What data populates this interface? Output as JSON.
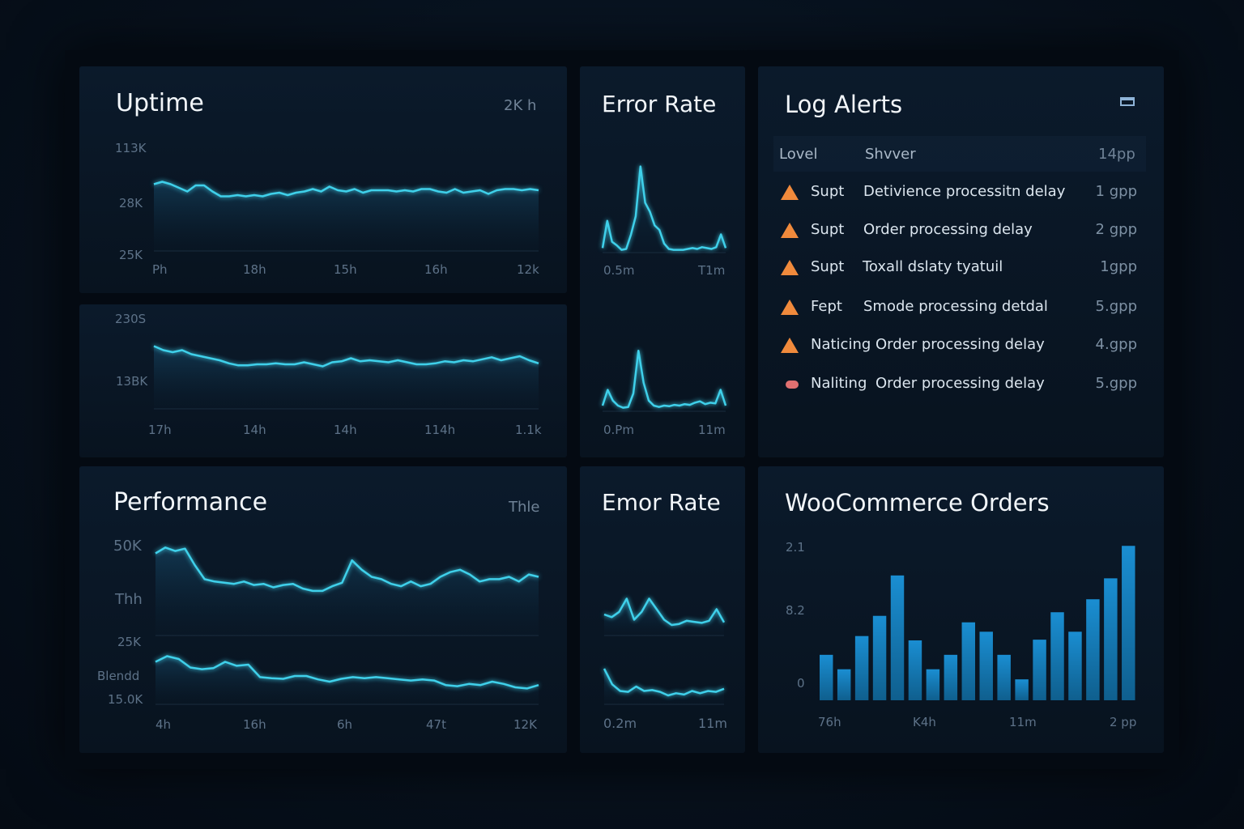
{
  "uptime": {
    "title": "Uptime",
    "range": "2K h",
    "top": {
      "yticks": [
        "113K",
        "28K",
        "25K"
      ],
      "xticks": [
        "Ph",
        "18h",
        "15h",
        "16h",
        "12k"
      ]
    },
    "bottom": {
      "yticks": [
        "230S",
        "13BK"
      ],
      "xticks": [
        "17h",
        "14h",
        "14h",
        "114h",
        "1.1k"
      ]
    }
  },
  "error_rate": {
    "title": "Error Rate",
    "top_xticks": [
      "0.5m",
      "T1m"
    ],
    "bottom_xticks": [
      "0.Pm",
      "11m"
    ]
  },
  "log_alerts": {
    "title": "Log Alerts",
    "icon": "window-icon",
    "columns": [
      "Lovel",
      "Shvver",
      "14pp"
    ],
    "rows": [
      {
        "icon": "warning-icon",
        "level": "Supt",
        "message": "Detivience processitn delay",
        "time": "1 gpp"
      },
      {
        "icon": "warning-icon",
        "level": "Supt",
        "message": "Order processing delay",
        "time": "2 gpp"
      },
      {
        "icon": "warning-icon",
        "level": "Supt",
        "message": "Toxall dslaty tyatuil",
        "time": "1gpp"
      },
      {
        "icon": "warning-icon",
        "level": "Fept",
        "message": "Smode processing detdal",
        "time": "5.gpp"
      },
      {
        "icon": "warning-icon",
        "level": "Naticing",
        "message": "Order processing delay",
        "time": "4.gpp"
      },
      {
        "icon": "error-pill-icon",
        "level": "Naliting",
        "message": "Order processing delay",
        "time": "5.gpp"
      }
    ],
    "colors": {
      "warning": "#f08a3c",
      "error": "#e07070"
    }
  },
  "performance": {
    "title": "Performance",
    "range": "Thle",
    "yticks": [
      "50K",
      "Thh",
      "25K",
      "Blendd",
      "15.0K"
    ],
    "xticks": [
      "4h",
      "16h",
      "6h",
      "47t",
      "12K"
    ]
  },
  "emor_rate": {
    "title": "Emor Rate",
    "xticks": [
      "0.2m",
      "11m"
    ]
  },
  "orders": {
    "title": "WooCommerce Orders",
    "yticks": [
      "2.1",
      "8.2",
      "0"
    ],
    "xticks": [
      "76h",
      "K4h",
      "11m",
      "2 pp"
    ]
  },
  "colors": {
    "line": "#3fd0ea",
    "bar": "#1a86c6",
    "background": "#07111d"
  },
  "chart_data": [
    {
      "id": "uptime_top",
      "type": "line",
      "ylim": [
        0,
        100
      ],
      "values": [
        55,
        57,
        55,
        52,
        49,
        54,
        54,
        49,
        45,
        45,
        46,
        45,
        46,
        45,
        47,
        48,
        46,
        48,
        49,
        51,
        49,
        53,
        50,
        49,
        51,
        48,
        50,
        50,
        50,
        49,
        50,
        49,
        51,
        51,
        49,
        48,
        51,
        48,
        49,
        50,
        47,
        50,
        51,
        51,
        50,
        51,
        50
      ]
    },
    {
      "id": "uptime_bottom",
      "type": "line",
      "ylim": [
        0,
        100
      ],
      "values": [
        62,
        58,
        56,
        58,
        54,
        52,
        50,
        48,
        45,
        43,
        43,
        44,
        44,
        45,
        44,
        44,
        46,
        44,
        42,
        46,
        47,
        50,
        47,
        48,
        47,
        46,
        48,
        46,
        44,
        44,
        45,
        47,
        46,
        48,
        47,
        49,
        51,
        48,
        50,
        52,
        48,
        45
      ]
    },
    {
      "id": "error_top",
      "type": "line",
      "ylim": [
        0,
        100
      ],
      "values": [
        5,
        35,
        12,
        8,
        3,
        4,
        20,
        40,
        95,
        55,
        45,
        30,
        25,
        10,
        4,
        3,
        3,
        3,
        4,
        5,
        4,
        6,
        5,
        4,
        6,
        20,
        5
      ]
    },
    {
      "id": "error_bottom",
      "type": "line",
      "ylim": [
        0,
        100
      ],
      "values": [
        8,
        30,
        15,
        8,
        5,
        6,
        25,
        85,
        40,
        15,
        8,
        6,
        8,
        7,
        9,
        8,
        10,
        9,
        12,
        14,
        10,
        12,
        11,
        30,
        8
      ]
    },
    {
      "id": "perf_top",
      "type": "line",
      "ylim": [
        0,
        100
      ],
      "values": [
        70,
        75,
        72,
        74,
        60,
        48,
        46,
        45,
        44,
        46,
        43,
        44,
        41,
        43,
        44,
        40,
        38,
        38,
        42,
        45,
        64,
        56,
        50,
        48,
        44,
        42,
        46,
        42,
        44,
        50,
        54,
        56,
        52,
        46,
        48,
        48,
        50,
        46,
        52,
        50
      ]
    },
    {
      "id": "perf_bottom",
      "type": "line",
      "ylim": [
        0,
        100
      ],
      "values": [
        75,
        85,
        80,
        65,
        62,
        64,
        75,
        68,
        70,
        48,
        46,
        45,
        50,
        50,
        44,
        40,
        45,
        48,
        46,
        48,
        46,
        44,
        42,
        44,
        42,
        34,
        32,
        36,
        34,
        40,
        36,
        30,
        28,
        34
      ]
    },
    {
      "id": "emor_top",
      "type": "line",
      "ylim": [
        0,
        100
      ],
      "values": [
        40,
        35,
        45,
        70,
        30,
        45,
        70,
        50,
        30,
        20,
        22,
        28,
        26,
        24,
        28,
        50,
        25
      ]
    },
    {
      "id": "emor_bottom",
      "type": "line",
      "ylim": [
        0,
        100
      ],
      "values": [
        80,
        45,
        30,
        28,
        40,
        30,
        32,
        28,
        20,
        25,
        22,
        30,
        25,
        30,
        28,
        35
      ]
    },
    {
      "id": "orders",
      "type": "bar",
      "ylim": [
        0,
        23
      ],
      "values": [
        6.3,
        4.3,
        8.9,
        11.7,
        17.3,
        8.3,
        4.3,
        6.3,
        10.8,
        9.5,
        6.3,
        2.9,
        8.4,
        12.2,
        9.5,
        14.0,
        16.9,
        21.4
      ]
    }
  ]
}
